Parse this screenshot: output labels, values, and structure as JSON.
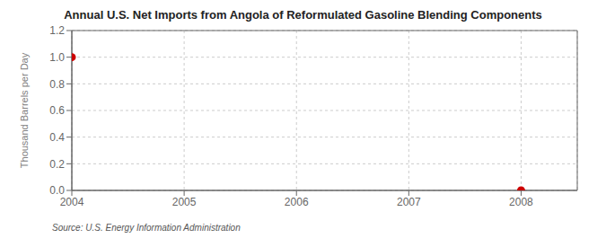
{
  "chart_data": {
    "type": "scatter",
    "title": "Annual U.S. Net Imports from Angola of Reformulated Gasoline Blending Components",
    "y_label": "Thousand Barrels per Day",
    "source": "Source: U.S. Energy Information Administration",
    "x": [
      2004,
      2008
    ],
    "values": [
      1.0,
      0.0
    ],
    "xlim": [
      2004,
      2008.5
    ],
    "ylim": [
      0.0,
      1.2
    ],
    "xticks": [
      2004,
      2005,
      2006,
      2007,
      2008
    ],
    "yticks": [
      {
        "value": 0.0,
        "label": "0.0"
      },
      {
        "value": 0.2,
        "label": "0.2"
      },
      {
        "value": 0.4,
        "label": "0.4"
      },
      {
        "value": 0.6,
        "label": "0.6"
      },
      {
        "value": 0.8,
        "label": "0.8"
      },
      {
        "value": 1.0,
        "label": "1.0"
      },
      {
        "value": 1.2,
        "label": "1.2"
      }
    ],
    "color": "#cc0000",
    "marker": "circle",
    "grid": true
  }
}
